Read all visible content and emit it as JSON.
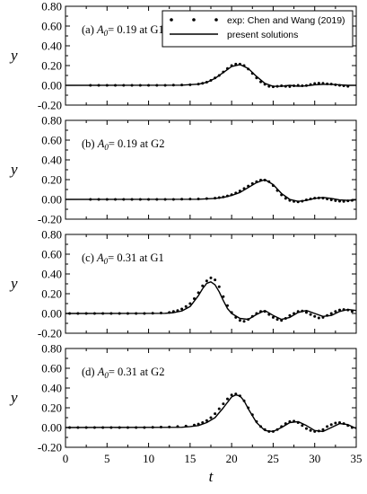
{
  "chart_data": [
    {
      "type": "line",
      "panel": "a",
      "annotation": {
        "prefix": "(a) ",
        "symbol": "A",
        "sub": "0",
        "suffix": "= 0.19 at G1"
      },
      "ylabel": "y",
      "xlim": [
        0,
        35
      ],
      "ylim": [
        -0.2,
        0.8
      ],
      "yticks": [
        "0.80",
        "0.60",
        "0.40",
        "0.20",
        "0.00",
        "-0.20"
      ],
      "series": [
        {
          "name": "present solutions",
          "style": "line",
          "x": [
            0,
            14,
            16,
            17,
            18,
            19,
            20,
            21,
            22,
            23,
            24,
            25,
            26,
            27,
            28,
            29,
            30,
            31,
            32,
            33,
            34,
            35
          ],
          "y": [
            0,
            0.002,
            0.012,
            0.03,
            0.07,
            0.13,
            0.19,
            0.21,
            0.17,
            0.09,
            0.02,
            -0.01,
            -0.01,
            0.0,
            -0.01,
            -0.005,
            0.005,
            0.01,
            0.01,
            0.005,
            0.0,
            0.0
          ]
        },
        {
          "name": "exp: Chen and Wang (2019)",
          "style": "dots",
          "x": [
            3,
            4,
            5,
            6,
            7,
            8,
            9,
            10,
            11,
            12,
            13,
            14,
            15,
            16,
            16.5,
            17,
            17.5,
            18,
            18.5,
            19,
            19.5,
            20,
            20.5,
            21,
            21.5,
            22,
            22.5,
            23,
            23.5,
            24,
            24.5,
            25,
            25.5,
            26,
            26.5,
            27,
            27.5,
            28,
            28.5,
            29,
            29.5,
            30,
            30.5,
            31,
            31.5,
            32,
            32.5,
            33,
            33.5,
            34
          ],
          "y": [
            0,
            0,
            0,
            0,
            0,
            0,
            0,
            0,
            0,
            0,
            0.002,
            0.003,
            0.006,
            0.013,
            0.02,
            0.032,
            0.05,
            0.075,
            0.1,
            0.135,
            0.17,
            0.2,
            0.215,
            0.215,
            0.2,
            0.165,
            0.12,
            0.075,
            0.035,
            0.01,
            -0.01,
            -0.015,
            -0.01,
            -0.005,
            -0.01,
            -0.012,
            -0.005,
            0.0,
            -0.005,
            -0.002,
            0.008,
            0.018,
            0.022,
            0.02,
            0.015,
            0.012,
            0.006,
            0.0,
            -0.005,
            -0.01
          ]
        }
      ]
    },
    {
      "type": "line",
      "panel": "b",
      "annotation": {
        "prefix": "(b) ",
        "symbol": "A",
        "sub": "0",
        "suffix": "= 0.19 at G2"
      },
      "ylabel": "y",
      "xlim": [
        0,
        35
      ],
      "ylim": [
        -0.2,
        0.8
      ],
      "yticks": [
        "0.80",
        "0.60",
        "0.40",
        "0.20",
        "0.00",
        "-0.20"
      ],
      "series": [
        {
          "name": "present solutions",
          "style": "line",
          "x": [
            0,
            16,
            18,
            19,
            20,
            21,
            22,
            23,
            24,
            25,
            26,
            27,
            28,
            29,
            30,
            31,
            32,
            33,
            34,
            35
          ],
          "y": [
            0,
            0.002,
            0.01,
            0.02,
            0.04,
            0.07,
            0.12,
            0.17,
            0.2,
            0.15,
            0.06,
            0.0,
            -0.02,
            -0.01,
            0.01,
            0.02,
            0.01,
            -0.005,
            -0.01,
            -0.005
          ]
        },
        {
          "name": "exp: Chen and Wang (2019)",
          "style": "dots",
          "x": [
            3,
            4,
            5,
            6,
            7,
            8,
            9,
            10,
            11,
            12,
            13,
            14,
            15,
            16,
            17,
            18,
            18.5,
            19,
            19.5,
            20,
            20.5,
            21,
            21.5,
            22,
            22.5,
            23,
            23.5,
            24,
            24.5,
            25,
            25.5,
            26,
            26.5,
            27,
            27.5,
            28,
            28.5,
            29,
            29.5,
            30,
            30.5,
            31,
            31.5,
            32,
            32.5,
            33,
            33.5,
            34,
            34.5
          ],
          "y": [
            0,
            0,
            0,
            0,
            0,
            0,
            0,
            0,
            0,
            0,
            0,
            0.002,
            0.003,
            0.005,
            0.008,
            0.013,
            0.018,
            0.025,
            0.035,
            0.048,
            0.065,
            0.085,
            0.11,
            0.135,
            0.16,
            0.18,
            0.195,
            0.195,
            0.18,
            0.14,
            0.09,
            0.045,
            0.01,
            -0.01,
            -0.02,
            -0.025,
            -0.018,
            -0.005,
            0.005,
            0.012,
            0.015,
            0.012,
            0.005,
            -0.005,
            -0.012,
            -0.018,
            -0.02,
            -0.015,
            -0.01
          ]
        }
      ]
    },
    {
      "type": "line",
      "panel": "c",
      "annotation": {
        "prefix": "(c) ",
        "symbol": "A",
        "sub": "0",
        "suffix": "= 0.31 at G1"
      },
      "ylabel": "y",
      "xlim": [
        0,
        35
      ],
      "ylim": [
        -0.2,
        0.8
      ],
      "yticks": [
        "0.80",
        "0.60",
        "0.40",
        "0.20",
        "0.00",
        "-0.20"
      ],
      "series": [
        {
          "name": "present solutions",
          "style": "line",
          "x": [
            0,
            12,
            13,
            14,
            15,
            16,
            16.5,
            17,
            17.5,
            18,
            18.5,
            19,
            19.5,
            20,
            21,
            22,
            23,
            24,
            25,
            26,
            27,
            28,
            29,
            30,
            31,
            32,
            33,
            34,
            35
          ],
          "y": [
            0,
            0.002,
            0.008,
            0.025,
            0.07,
            0.18,
            0.25,
            0.305,
            0.32,
            0.29,
            0.22,
            0.13,
            0.05,
            0.0,
            -0.05,
            -0.06,
            -0.01,
            0.03,
            -0.02,
            -0.06,
            -0.04,
            0.01,
            0.03,
            0.0,
            -0.03,
            -0.02,
            0.02,
            0.04,
            0.03
          ]
        },
        {
          "name": "exp: Chen and Wang (2019)",
          "style": "dots",
          "x": [
            0.5,
            1.5,
            2.5,
            3.5,
            4.5,
            5.5,
            6.5,
            7.5,
            8.5,
            9.5,
            10.5,
            11.5,
            12.5,
            13,
            13.5,
            14,
            14.5,
            15,
            15.5,
            16,
            16.5,
            17,
            17.5,
            18,
            18.5,
            19,
            19.5,
            20,
            20.5,
            21,
            21.5,
            22,
            22.5,
            23,
            23.5,
            24,
            24.5,
            25,
            25.5,
            26,
            26.5,
            27,
            27.5,
            28,
            28.5,
            29,
            29.5,
            30,
            30.5,
            31,
            31.5,
            32,
            32.5,
            33,
            33.5,
            34,
            34.5
          ],
          "y": [
            0,
            0,
            0,
            0,
            0,
            0,
            0,
            0,
            0,
            0,
            0.002,
            0.005,
            0.01,
            0.02,
            0.03,
            0.045,
            0.07,
            0.1,
            0.15,
            0.21,
            0.28,
            0.33,
            0.36,
            0.34,
            0.27,
            0.17,
            0.08,
            0.01,
            -0.04,
            -0.07,
            -0.08,
            -0.06,
            -0.03,
            0.0,
            0.02,
            0.02,
            -0.01,
            -0.04,
            -0.06,
            -0.07,
            -0.05,
            -0.02,
            0.0,
            0.02,
            0.025,
            0.01,
            -0.01,
            -0.03,
            -0.045,
            -0.04,
            -0.02,
            0.0,
            0.02,
            0.035,
            0.04,
            0.035,
            0.02
          ]
        }
      ]
    },
    {
      "type": "line",
      "panel": "d",
      "annotation": {
        "prefix": "(d) ",
        "symbol": "A",
        "sub": "0",
        "suffix": "= 0.31 at G2"
      },
      "ylabel": "y",
      "xlabel": "t",
      "xlim": [
        0,
        35
      ],
      "ylim": [
        -0.2,
        0.8
      ],
      "yticks": [
        "0.80",
        "0.60",
        "0.40",
        "0.20",
        "0.00",
        "-0.20"
      ],
      "xticks": [
        "0",
        "5",
        "10",
        "15",
        "20",
        "25",
        "30",
        "35"
      ],
      "series": [
        {
          "name": "present solutions",
          "style": "line",
          "x": [
            0,
            14,
            15,
            16,
            17,
            18,
            19,
            20,
            20.5,
            21,
            21.5,
            22,
            23,
            24,
            25,
            26,
            27,
            28,
            29,
            30,
            31,
            32,
            33,
            34,
            35
          ],
          "y": [
            0,
            0.003,
            0.01,
            0.02,
            0.05,
            0.1,
            0.2,
            0.31,
            0.33,
            0.32,
            0.27,
            0.19,
            0.05,
            -0.03,
            -0.04,
            0.0,
            0.05,
            0.06,
            0.02,
            -0.03,
            -0.04,
            0.0,
            0.04,
            0.03,
            -0.01
          ]
        },
        {
          "name": "exp: Chen and Wang (2019)",
          "style": "dots",
          "x": [
            0.5,
            1.5,
            2.5,
            3.5,
            4.5,
            5.5,
            6.5,
            7.5,
            8.5,
            9.5,
            10.5,
            11.5,
            12.5,
            13.5,
            14.5,
            15.5,
            16,
            16.5,
            17,
            17.5,
            18,
            18.5,
            19,
            19.5,
            20,
            20.5,
            21,
            21.5,
            22,
            22.5,
            23,
            23.5,
            24,
            24.5,
            25,
            25.5,
            26,
            26.5,
            27,
            27.5,
            28,
            28.5,
            29,
            29.5,
            30,
            30.5,
            31,
            31.5,
            32,
            32.5,
            33,
            33.5,
            34,
            34.5
          ],
          "y": [
            0,
            0,
            0,
            0,
            0,
            0,
            0,
            0,
            0,
            0,
            0.002,
            0.004,
            0.006,
            0.01,
            0.015,
            0.025,
            0.035,
            0.05,
            0.07,
            0.1,
            0.14,
            0.19,
            0.24,
            0.29,
            0.33,
            0.34,
            0.32,
            0.27,
            0.2,
            0.13,
            0.06,
            0.01,
            -0.02,
            -0.04,
            -0.04,
            -0.02,
            0.01,
            0.04,
            0.06,
            0.065,
            0.05,
            0.02,
            -0.01,
            -0.03,
            -0.04,
            -0.035,
            -0.02,
            0.01,
            0.03,
            0.045,
            0.05,
            0.04,
            0.02,
            0.0
          ]
        }
      ]
    }
  ],
  "legend": {
    "entries": [
      {
        "label": "exp: Chen and Wang (2019)",
        "style": "dots"
      },
      {
        "label": "present solutions",
        "style": "line"
      }
    ]
  },
  "colors": {
    "line": "#000000",
    "dots": "#000000",
    "background": "#ffffff"
  }
}
